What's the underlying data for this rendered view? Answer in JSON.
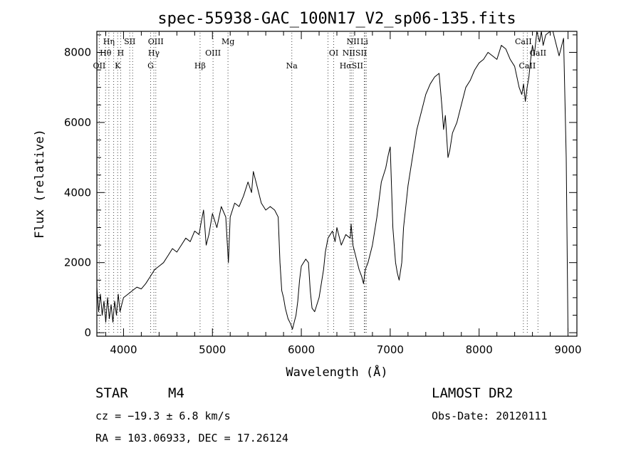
{
  "chart_data": {
    "type": "line",
    "title": "spec-55938-GAC_100N17_V2_sp06-135.fits",
    "xlabel": "Wavelength (Å)",
    "ylabel": "Flux (relative)",
    "xlim": [
      3700,
      9100
    ],
    "ylim": [
      -100,
      8600
    ],
    "xticks": [
      4000,
      5000,
      6000,
      7000,
      8000,
      9000
    ],
    "yticks": [
      0,
      2000,
      4000,
      6000,
      8000
    ],
    "x_minor_step": 200,
    "y_minor_step": 500,
    "series": [
      {
        "color": "#000000",
        "x": [
          3700,
          3720,
          3740,
          3760,
          3780,
          3800,
          3820,
          3840,
          3860,
          3880,
          3900,
          3920,
          3940,
          3960,
          3980,
          4000,
          4050,
          4100,
          4150,
          4200,
          4250,
          4300,
          4350,
          4400,
          4450,
          4500,
          4550,
          4600,
          4650,
          4700,
          4750,
          4800,
          4850,
          4870,
          4900,
          4930,
          4960,
          5000,
          5050,
          5100,
          5150,
          5180,
          5200,
          5250,
          5300,
          5350,
          5400,
          5440,
          5460,
          5500,
          5550,
          5600,
          5650,
          5700,
          5740,
          5760,
          5780,
          5800,
          5820,
          5850,
          5880,
          5900,
          5920,
          5940,
          5960,
          5980,
          6000,
          6050,
          6080,
          6100,
          6120,
          6150,
          6200,
          6250,
          6270,
          6300,
          6350,
          6380,
          6400,
          6450,
          6500,
          6550,
          6560,
          6580,
          6600,
          6630,
          6650,
          6680,
          6700,
          6720,
          6750,
          6800,
          6850,
          6900,
          6950,
          6980,
          7000,
          7030,
          7060,
          7080,
          7100,
          7130,
          7150,
          7200,
          7250,
          7300,
          7350,
          7400,
          7450,
          7500,
          7550,
          7580,
          7600,
          7620,
          7650,
          7670,
          7700,
          7750,
          7800,
          7850,
          7900,
          7950,
          8000,
          8050,
          8100,
          8150,
          8200,
          8250,
          8300,
          8350,
          8400,
          8450,
          8480,
          8500,
          8520,
          8540,
          8560,
          8580,
          8600,
          8620,
          8650,
          8680,
          8700,
          8720,
          8750,
          8800,
          8830,
          8860,
          8900,
          8950,
          8980,
          9000
        ],
        "y": [
          1300,
          600,
          1100,
          500,
          900,
          300,
          1000,
          400,
          800,
          300,
          900,
          500,
          1100,
          600,
          800,
          1000,
          1100,
          1200,
          1300,
          1250,
          1400,
          1600,
          1800,
          1900,
          2000,
          2200,
          2400,
          2300,
          2500,
          2700,
          2600,
          2900,
          2800,
          3100,
          3500,
          2500,
          2800,
          3400,
          3000,
          3600,
          3300,
          2000,
          3300,
          3700,
          3600,
          3900,
          4300,
          4000,
          4600,
          4200,
          3700,
          3500,
          3600,
          3500,
          3300,
          2000,
          1200,
          1000,
          700,
          400,
          250,
          100,
          300,
          500,
          900,
          1500,
          1900,
          2100,
          2000,
          1200,
          700,
          600,
          1000,
          1800,
          2300,
          2700,
          2900,
          2600,
          3000,
          2500,
          2800,
          2700,
          3100,
          2500,
          2300,
          2000,
          1800,
          1600,
          1400,
          1800,
          2000,
          2500,
          3300,
          4300,
          4700,
          5100,
          5300,
          3000,
          2000,
          1700,
          1500,
          2000,
          3000,
          4200,
          5000,
          5800,
          6300,
          6800,
          7100,
          7300,
          7400,
          6500,
          5800,
          6200,
          5000,
          5200,
          5700,
          6000,
          6500,
          7000,
          7200,
          7500,
          7700,
          7800,
          8000,
          7900,
          7800,
          8200,
          8100,
          7800,
          7600,
          7000,
          6800,
          7100,
          6600,
          7000,
          7300,
          7800,
          8200,
          7900,
          8600,
          8300,
          8700,
          8200,
          8500,
          8800,
          8600,
          8300,
          7900,
          8400,
          5000,
          0
        ]
      }
    ],
    "line_markers": [
      {
        "label": "Hη",
        "x": 3835,
        "row": 1
      },
      {
        "label": "Hθ",
        "x": 3798,
        "row": 2
      },
      {
        "label": "OII",
        "x": 3727,
        "row": 3
      },
      {
        "label": "SII",
        "x": 4070,
        "row": 1
      },
      {
        "label": "H",
        "x": 3968,
        "row": 2
      },
      {
        "label": "K",
        "x": 3934,
        "row": 3
      },
      {
        "label": "OIII",
        "x": 4363,
        "row": 1
      },
      {
        "label": "Hγ",
        "x": 4341,
        "row": 2
      },
      {
        "label": "G",
        "x": 4305,
        "row": 3
      },
      {
        "label": "Mg",
        "x": 5175,
        "row": 1
      },
      {
        "label": "OIII",
        "x": 5007,
        "row": 2
      },
      {
        "label": "Hβ",
        "x": 4861,
        "row": 3
      },
      {
        "label": "Na",
        "x": 5893,
        "row": 3
      },
      {
        "label": "NII",
        "x": 6583,
        "row": 1
      },
      {
        "label": "Li",
        "x": 6708,
        "row": 1
      },
      {
        "label": "OI",
        "x": 6364,
        "row": 2
      },
      {
        "label": "NIISII",
        "x": 6600,
        "row": 2
      },
      {
        "label": "HαSII",
        "x": 6563,
        "row": 3
      },
      {
        "label": "CaII",
        "x": 8498,
        "row": 1
      },
      {
        "label": "CaII",
        "x": 8662,
        "row": 2
      },
      {
        "label": "CaII",
        "x": 8542,
        "row": 3
      }
    ],
    "marker_lines": [
      3727,
      3798,
      3835,
      3889,
      3934,
      3968,
      4070,
      4102,
      4305,
      4341,
      4363,
      4861,
      5007,
      5175,
      5893,
      6300,
      6364,
      6548,
      6563,
      6583,
      6708,
      6717,
      6731,
      8498,
      8542,
      8662
    ]
  },
  "info": {
    "class_label": "STAR",
    "subclass": "M4",
    "redshift_text": "cz = −19.3 ± 6.8 km/s",
    "coords_text": "RA = 103.06933, DEC =  17.26124",
    "survey": "LAMOST DR2",
    "obs_date": "Obs-Date: 20120111"
  }
}
